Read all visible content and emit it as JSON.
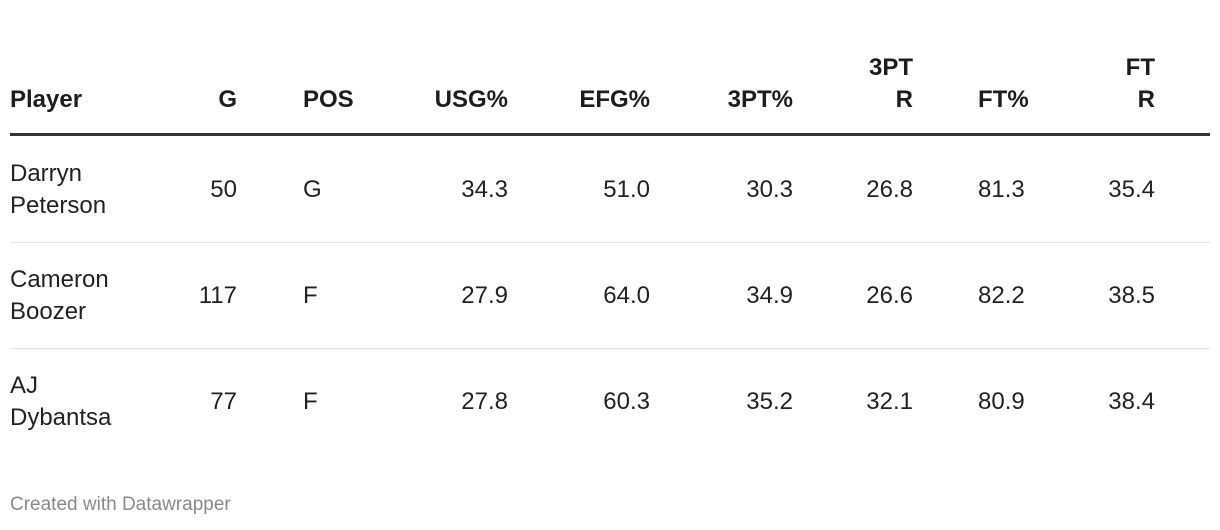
{
  "table": {
    "columns": [
      "Player",
      "G",
      "POS",
      "USG%",
      "EFG%",
      "3PT%",
      "3PT R",
      "FT%",
      "FT R"
    ],
    "rows": [
      [
        "Darryn Peterson",
        "50",
        "G",
        "34.3",
        "51.0",
        "30.3",
        "26.8",
        "81.3",
        "35.4"
      ],
      [
        "Cameron Boozer",
        "117",
        "F",
        "27.9",
        "64.0",
        "34.9",
        "26.6",
        "82.2",
        "38.5"
      ],
      [
        "AJ Dybantsa",
        "77",
        "F",
        "27.8",
        "60.3",
        "35.2",
        "32.1",
        "80.9",
        "38.4"
      ]
    ]
  },
  "footer": "Created with Datawrapper"
}
